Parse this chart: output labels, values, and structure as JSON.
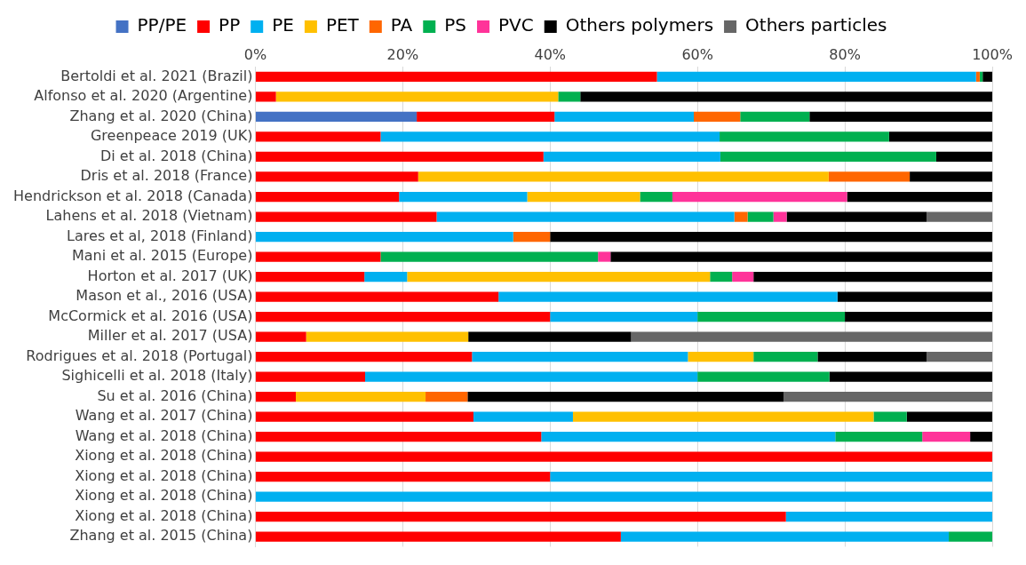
{
  "chart_data": {
    "type": "bar",
    "orientation": "horizontal",
    "stacked": true,
    "legend": "top",
    "grid": "x",
    "categories": [
      "Bertoldi et al. 2021 (Brazil)",
      "Alfonso et al. 2020 (Argentine)",
      "Zhang et al. 2020 (China)",
      "Greenpeace 2019 (UK)",
      "Di et al. 2018 (China)",
      "Dris et al. 2018 (France)",
      "Hendrickson et al. 2018 (Canada)",
      "Lahens et al. 2018 (Vietnam)",
      "Lares et al, 2018 (Finland)",
      "Mani et al. 2015 (Europe)",
      "Horton et al. 2017 (UK)",
      "Mason et al., 2016 (USA)",
      "McCormick et al. 2016 (USA)",
      "Miller et al. 2017 (USA)",
      "Rodrigues et al. 2018 (Portugal)",
      "Sighicelli et al. 2018 (Italy)",
      "Su et al. 2016 (China)",
      "Wang et al. 2017 (China)",
      "Wang et al. 2018 (China)",
      "Xiong et al. 2018 (China)",
      "Xiong et al. 2018 (China)",
      "Xiong et al. 2018 (China)",
      "Xiong et al. 2018 (China)",
      "Zhang et al. 2015 (China)"
    ],
    "xlim": [
      0,
      100
    ],
    "xticks": [
      {
        "value": 0,
        "label": "0%"
      },
      {
        "value": 20,
        "label": "20%"
      },
      {
        "value": 40,
        "label": "40%"
      },
      {
        "value": 60,
        "label": "60%"
      },
      {
        "value": 80,
        "label": "80%"
      },
      {
        "value": 100,
        "label": "100%"
      }
    ],
    "series": [
      {
        "name": "PP/PE",
        "color": "#4472c4",
        "values": [
          null,
          null,
          21.9,
          null,
          null,
          null,
          null,
          null,
          null,
          null,
          null,
          null,
          null,
          null,
          null,
          null,
          null,
          null,
          null,
          null,
          null,
          null,
          null,
          null
        ]
      },
      {
        "name": "PP",
        "color": "#ff0000",
        "values": [
          54.5,
          2.8,
          18.7,
          17,
          39.1,
          22.1,
          19.5,
          24.6,
          null,
          17,
          14.8,
          33,
          40,
          6.9,
          29.4,
          14.9,
          5.5,
          29.6,
          38.8,
          100,
          40,
          null,
          72,
          49.6
        ]
      },
      {
        "name": "PE",
        "color": "#00b0f0",
        "values": [
          43.3,
          null,
          18.9,
          46,
          24,
          null,
          17.4,
          40.4,
          35,
          null,
          5.8,
          46,
          20,
          null,
          29.3,
          45.1,
          null,
          13.5,
          39.9,
          null,
          60,
          100,
          28,
          44.5
        ]
      },
      {
        "name": "PET",
        "color": "#ffc000",
        "values": [
          null,
          38.3,
          null,
          null,
          null,
          55.7,
          15.3,
          null,
          null,
          null,
          41.1,
          null,
          null,
          22,
          8.9,
          null,
          17.6,
          40.8,
          null,
          null,
          null,
          null,
          null,
          null
        ]
      },
      {
        "name": "PA",
        "color": "#ff6600",
        "values": [
          0.5,
          null,
          6.3,
          null,
          null,
          11,
          null,
          1.8,
          5,
          null,
          null,
          null,
          null,
          null,
          null,
          null,
          5.7,
          null,
          null,
          null,
          null,
          null,
          null,
          null
        ]
      },
      {
        "name": "PS",
        "color": "#00b050",
        "values": [
          0.4,
          3,
          9.4,
          23,
          29.3,
          null,
          4.4,
          3.5,
          null,
          29.5,
          3,
          null,
          20,
          null,
          8.7,
          17.9,
          null,
          4.5,
          11.8,
          null,
          null,
          null,
          null,
          5.9
        ]
      },
      {
        "name": "PVC",
        "color": "#ff3399",
        "values": [
          null,
          null,
          null,
          null,
          null,
          null,
          23.7,
          1.8,
          null,
          1.7,
          2.9,
          null,
          null,
          null,
          null,
          null,
          null,
          null,
          6.5,
          null,
          null,
          null,
          null,
          null
        ]
      },
      {
        "name": "Others polymers",
        "color": "#000000",
        "values": [
          1.3,
          55.9,
          24.8,
          14,
          7.6,
          11.2,
          19.7,
          19,
          60,
          51.8,
          32.4,
          21,
          20,
          22.1,
          14.8,
          22.1,
          42.9,
          11.6,
          3,
          null,
          null,
          null,
          null,
          null
        ]
      },
      {
        "name": "Others particles",
        "color": "#666666",
        "values": [
          null,
          null,
          null,
          null,
          null,
          null,
          null,
          8.9,
          null,
          null,
          null,
          null,
          null,
          49,
          8.9,
          null,
          28.3,
          null,
          null,
          null,
          null,
          null,
          null,
          null
        ]
      }
    ]
  }
}
